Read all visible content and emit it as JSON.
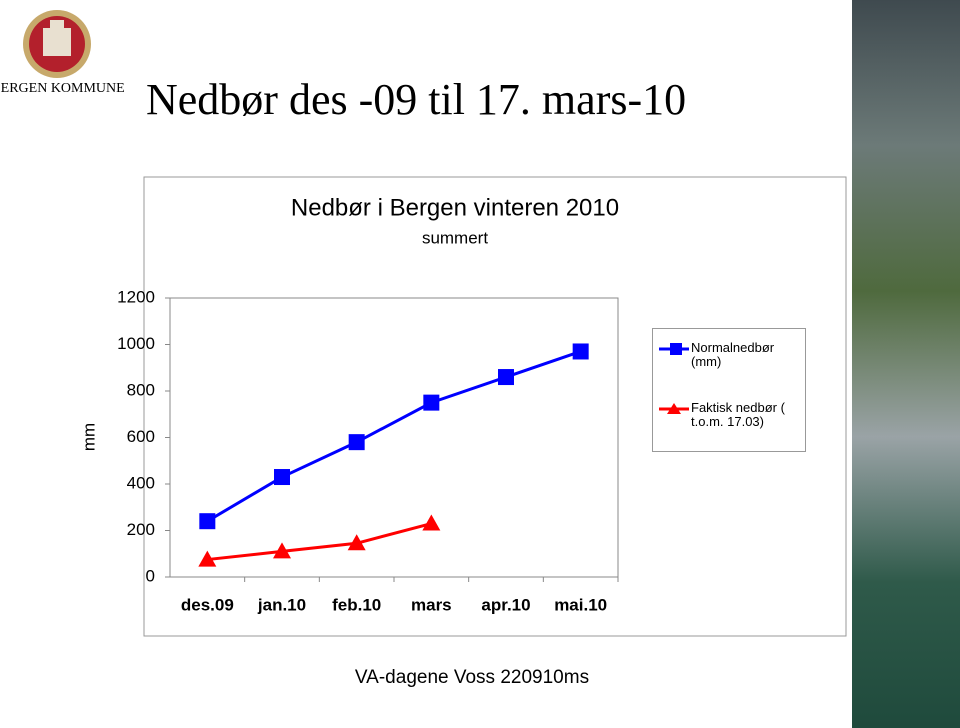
{
  "logo_text": "BERGEN KOMMUNE",
  "slide_title": "Nedbør des -09 til 17. mars-10",
  "footer": "VA-dagene Voss 220910ms",
  "chart_data": {
    "type": "line",
    "title": "Nedbør i Bergen vinteren 2010",
    "subtitle": "summert",
    "y_label": "mm",
    "categories": [
      "des.09",
      "jan.10",
      "feb.10",
      "mars",
      "apr.10",
      "mai.10"
    ],
    "series": [
      {
        "name": "Normalnedbør (mm)",
        "color": "#0000ff",
        "marker": "square",
        "values": [
          240,
          430,
          580,
          750,
          860,
          970
        ]
      },
      {
        "name": "Faktisk nedbør ( t.o.m. 17.03)",
        "color": "#ff0000",
        "marker": "triangle",
        "values": [
          75,
          110,
          145,
          230,
          null,
          null
        ]
      }
    ],
    "ylim": [
      0,
      1200
    ],
    "yticks": [
      0,
      200,
      400,
      600,
      800,
      1000,
      1200
    ],
    "grid": false,
    "legend": "right"
  }
}
